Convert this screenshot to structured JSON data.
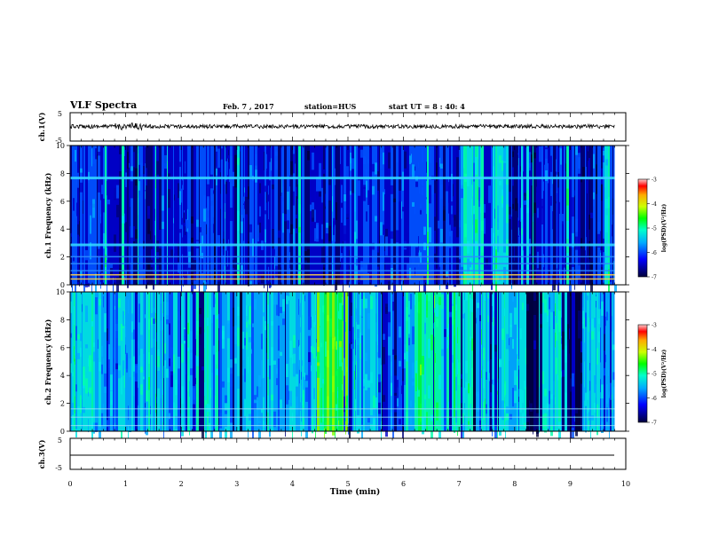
{
  "header": {
    "title": "VLF Spectra",
    "date": "Feb. 7 , 2017",
    "station": "station=HUS",
    "start_ut": "start UT =  8 : 40: 4"
  },
  "chart_data": [
    {
      "type": "line",
      "panel": "ch1-waveform",
      "ylabel": "ch.1(V)",
      "yticklabels": [
        "5",
        "-5"
      ],
      "ylim": [
        -5,
        5
      ],
      "series": [
        {
          "values": "noisy signal near 0 V across 0-9.8 min"
        }
      ]
    },
    {
      "type": "heatmap",
      "panel": "ch1-spectrogram",
      "ylabel": "ch.1\nFrequency (kHz)",
      "yticklabels": [
        "0",
        "2",
        "4",
        "6",
        "8",
        "10"
      ],
      "ylim": [
        0,
        10
      ],
      "xlim": [
        0,
        9.8
      ],
      "horizontal_lines_khz": [
        0.4,
        0.7,
        1.0,
        1.5,
        2.0,
        2.9,
        7.7
      ],
      "colorbar": {
        "label": "log(PSD)(V²/Hz)",
        "ticklabels": [
          "-3",
          "-4",
          "-5",
          "-6",
          "-7"
        ],
        "range": [
          -7,
          -3
        ]
      }
    },
    {
      "type": "heatmap",
      "panel": "ch2-spectrogram",
      "ylabel": "ch.2\nFrequency (kHz)",
      "yticklabels": [
        "0",
        "2",
        "4",
        "6",
        "8",
        "10"
      ],
      "ylim": [
        0,
        10
      ],
      "xlim": [
        0,
        9.8
      ],
      "colorbar": {
        "label": "log(PSD)(V²/Hz)",
        "ticklabels": [
          "-3",
          "-4",
          "-5",
          "-6",
          "-7"
        ],
        "range": [
          -7,
          -3
        ]
      }
    },
    {
      "type": "line",
      "panel": "ch3-waveform",
      "ylabel": "ch.3(V)",
      "yticklabels": [
        "5",
        "-5"
      ],
      "ylim": [
        -5,
        5
      ],
      "series": [
        {
          "values": "flat line near -2 V"
        }
      ]
    }
  ],
  "xaxis": {
    "label": "Time (min)",
    "ticklabels": [
      "0",
      "1",
      "2",
      "3",
      "4",
      "5",
      "6",
      "7",
      "8",
      "9",
      "10"
    ],
    "xlim": [
      0,
      10
    ]
  },
  "colors": {
    "background": "#ffffff",
    "axis": "#000000",
    "cmap_low": "#000050",
    "cmap_mid": "#00c8c8",
    "cmap_high": "#ff0000"
  }
}
